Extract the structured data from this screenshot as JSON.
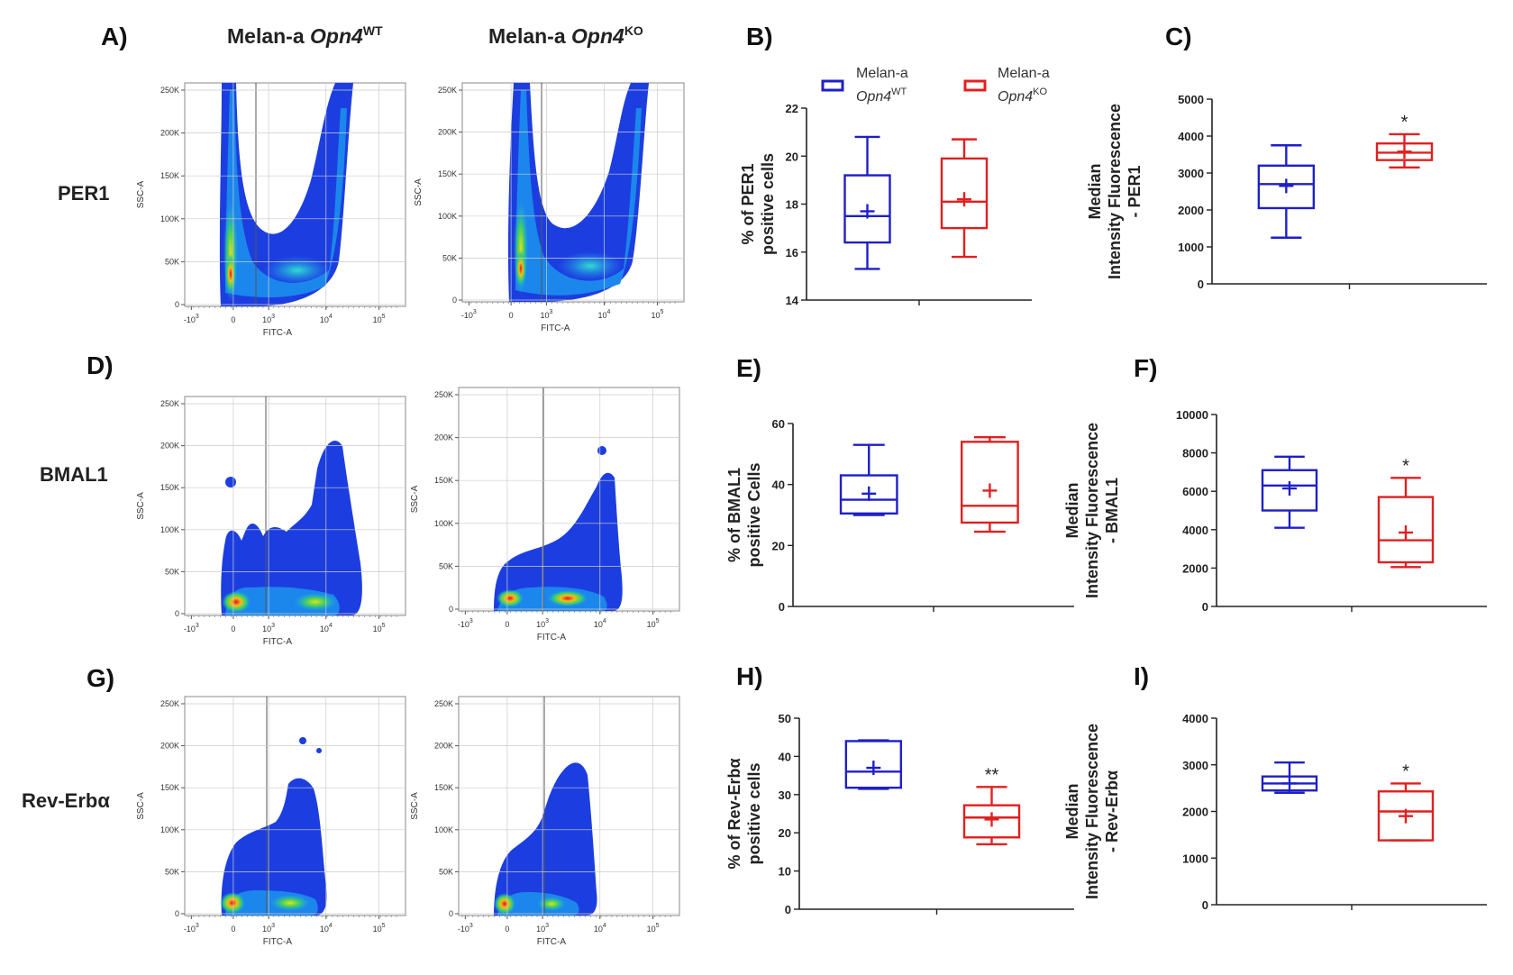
{
  "headers": {
    "wt": {
      "prefix": "Melan-a ",
      "gene": "Opn4",
      "sup": "WT"
    },
    "ko": {
      "prefix": "Melan-a ",
      "gene": "Opn4",
      "sup": "KO"
    }
  },
  "legend": {
    "wt": {
      "line1": "Melan-a",
      "gene": "Opn4",
      "sup": "WT",
      "color": "#1f1fc8"
    },
    "ko": {
      "line1": "Melan-a",
      "gene": "Opn4",
      "sup": "KO",
      "color": "#e02020"
    }
  },
  "rows": [
    {
      "panel": "A)",
      "label": "PER1"
    },
    {
      "panel": "D)",
      "label": "BMAL1"
    },
    {
      "panel": "G)",
      "label": "Rev-Erbα"
    }
  ],
  "flow_axes": {
    "x_label": "FITC-A",
    "y_label": "SSC-A",
    "y_ticks": [
      "0",
      "50K",
      "100K",
      "150K",
      "200K",
      "250K"
    ],
    "x_ticks": [
      {
        "base": "-10",
        "exp": "3"
      },
      {
        "base": "0",
        "exp": ""
      },
      {
        "base": "10",
        "exp": "3"
      },
      {
        "base": "10",
        "exp": "4"
      },
      {
        "base": "10",
        "exp": "5"
      }
    ]
  },
  "chart_data": [
    {
      "panel": "B)",
      "type": "box",
      "ylabel": [
        "% of PER1",
        "positive cells"
      ],
      "ylim": [
        14,
        22
      ],
      "ticks": [
        14,
        16,
        18,
        20,
        22
      ],
      "significance": "",
      "series": [
        {
          "name": "Melan-a Opn4 WT",
          "color": "#1f1fc8",
          "min": 15.3,
          "q1": 16.4,
          "median": 17.5,
          "q3": 19.2,
          "max": 20.8,
          "mean": 17.7
        },
        {
          "name": "Melan-a Opn4 KO",
          "color": "#e02020",
          "min": 15.8,
          "q1": 17.0,
          "median": 18.1,
          "q3": 19.9,
          "max": 20.7,
          "mean": 18.2
        }
      ]
    },
    {
      "panel": "C)",
      "type": "box",
      "ylabel": [
        "Median",
        "Intensity Fluorescence",
        "- PER1"
      ],
      "ylim": [
        0,
        5000
      ],
      "ticks": [
        0,
        1000,
        2000,
        3000,
        4000,
        5000
      ],
      "significance": "*",
      "series": [
        {
          "name": "Melan-a Opn4 WT",
          "color": "#1f1fc8",
          "min": 1250,
          "q1": 2050,
          "median": 2700,
          "q3": 3200,
          "max": 3750,
          "mean": 2650
        },
        {
          "name": "Melan-a Opn4 KO",
          "color": "#e02020",
          "min": 3150,
          "q1": 3350,
          "median": 3550,
          "q3": 3800,
          "max": 4050,
          "mean": 3580
        }
      ]
    },
    {
      "panel": "E)",
      "type": "box",
      "ylabel": [
        "% of BMAL1",
        "positive Cells"
      ],
      "ylim": [
        0,
        60
      ],
      "ticks": [
        0,
        20,
        40,
        60
      ],
      "significance": "",
      "series": [
        {
          "name": "Melan-a Opn4 WT",
          "color": "#1f1fc8",
          "min": 30,
          "q1": 30.5,
          "median": 35,
          "q3": 43,
          "max": 53,
          "mean": 37
        },
        {
          "name": "Melan-a Opn4 KO",
          "color": "#e02020",
          "min": 24.5,
          "q1": 27.5,
          "median": 33,
          "q3": 54,
          "max": 55.5,
          "mean": 38
        }
      ]
    },
    {
      "panel": "F)",
      "type": "box",
      "ylabel": [
        "Median",
        "Intensity Fluorescence",
        "- BMAL1"
      ],
      "ylim": [
        0,
        10000
      ],
      "ticks": [
        0,
        2000,
        4000,
        6000,
        8000,
        10000
      ],
      "significance": "*",
      "series": [
        {
          "name": "Melan-a Opn4 WT",
          "color": "#1f1fc8",
          "min": 4100,
          "q1": 5000,
          "median": 6300,
          "q3": 7100,
          "max": 7800,
          "mean": 6150
        },
        {
          "name": "Melan-a Opn4 KO",
          "color": "#e02020",
          "min": 2050,
          "q1": 2300,
          "median": 3450,
          "q3": 5700,
          "max": 6700,
          "mean": 3850
        }
      ]
    },
    {
      "panel": "H)",
      "type": "box",
      "ylabel": [
        "% of Rev-Erbα",
        "positive cells"
      ],
      "ylim": [
        0,
        50
      ],
      "ticks": [
        0,
        10,
        20,
        30,
        40,
        50
      ],
      "significance": "**",
      "series": [
        {
          "name": "Melan-a Opn4 WT",
          "color": "#1f1fc8",
          "min": 31.5,
          "q1": 31.8,
          "median": 36,
          "q3": 44,
          "max": 44.2,
          "mean": 37
        },
        {
          "name": "Melan-a Opn4 KO",
          "color": "#e02020",
          "min": 17,
          "q1": 18.8,
          "median": 24,
          "q3": 27.2,
          "max": 32,
          "mean": 23.5
        }
      ]
    },
    {
      "panel": "I)",
      "type": "box",
      "ylabel": [
        "Median",
        "Intensity Fluorescence",
        "- Rev-Erbα"
      ],
      "ylim": [
        0,
        4000
      ],
      "ticks": [
        0,
        1000,
        2000,
        3000,
        4000
      ],
      "significance": "*",
      "series": [
        {
          "name": "Melan-a Opn4 WT",
          "color": "#1f1fc8",
          "min": 2400,
          "q1": 2450,
          "median": 2600,
          "q3": 2750,
          "max": 3050,
          "mean": 2600
        },
        {
          "name": "Melan-a Opn4 KO",
          "color": "#e02020",
          "min": 1380,
          "q1": 1380,
          "median": 2000,
          "q3": 2430,
          "max": 2600,
          "mean": 1900
        }
      ]
    }
  ]
}
